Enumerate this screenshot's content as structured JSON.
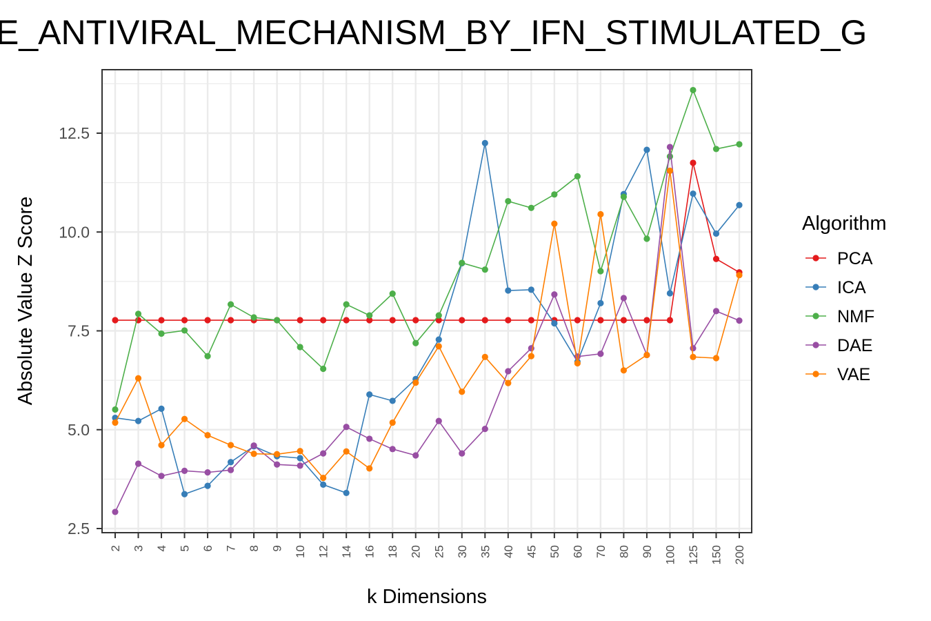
{
  "chart_data": {
    "type": "line",
    "title": "E_ANTIVIRAL_MECHANISM_BY_IFN_STIMULATED_G",
    "xlabel": "k Dimensions",
    "ylabel": "Absolute Value Z Score",
    "categories": [
      "2",
      "3",
      "4",
      "5",
      "6",
      "7",
      "8",
      "9",
      "10",
      "12",
      "14",
      "16",
      "18",
      "20",
      "25",
      "30",
      "35",
      "40",
      "45",
      "50",
      "60",
      "70",
      "80",
      "90",
      "100",
      "125",
      "150",
      "200"
    ],
    "yticks": [
      "2.5",
      "5.0",
      "7.5",
      "10.0",
      "12.5"
    ],
    "ylim": [
      2.4,
      14.2
    ],
    "grid": true,
    "legend": {
      "title": "Algorithm",
      "position": "right"
    },
    "series": [
      {
        "name": "PCA",
        "color": "#e41a1c",
        "values": [
          7.77,
          7.77,
          7.77,
          7.77,
          7.77,
          7.77,
          7.77,
          7.77,
          7.77,
          7.77,
          7.77,
          7.77,
          7.77,
          7.77,
          7.77,
          7.77,
          7.77,
          7.77,
          7.77,
          7.77,
          7.77,
          7.77,
          7.77,
          7.77,
          7.77,
          11.75,
          9.32,
          8.98
        ]
      },
      {
        "name": "ICA",
        "color": "#377eb8",
        "values": [
          5.3,
          5.22,
          5.53,
          3.37,
          3.58,
          4.18,
          4.58,
          4.33,
          4.28,
          3.61,
          3.4,
          5.89,
          5.73,
          6.28,
          7.28,
          9.21,
          12.25,
          8.52,
          8.54,
          7.69,
          6.72,
          8.2,
          10.96,
          12.08,
          8.45,
          10.97,
          9.96,
          10.68
        ]
      },
      {
        "name": "NMF",
        "color": "#4daf4a",
        "values": [
          5.51,
          7.93,
          7.43,
          7.51,
          6.86,
          8.17,
          7.84,
          7.77,
          7.09,
          6.54,
          8.17,
          7.89,
          8.44,
          7.19,
          7.89,
          9.22,
          9.05,
          10.78,
          10.61,
          10.95,
          11.41,
          9.01,
          10.89,
          9.83,
          11.91,
          13.59,
          12.1,
          12.22
        ]
      },
      {
        "name": "DAE",
        "color": "#984ea3",
        "values": [
          2.92,
          4.14,
          3.83,
          3.96,
          3.92,
          3.98,
          4.6,
          4.12,
          4.09,
          4.4,
          5.07,
          4.77,
          4.51,
          4.35,
          5.22,
          4.4,
          5.02,
          6.48,
          7.06,
          8.42,
          6.85,
          6.92,
          8.33,
          6.89,
          12.15,
          7.06,
          8.0,
          7.76
        ]
      },
      {
        "name": "VAE",
        "color": "#ff7f00",
        "values": [
          5.18,
          6.3,
          4.61,
          5.27,
          4.86,
          4.61,
          4.39,
          4.38,
          4.46,
          3.78,
          4.45,
          4.02,
          5.18,
          6.19,
          7.11,
          5.96,
          6.84,
          6.18,
          6.86,
          10.21,
          6.68,
          10.45,
          6.5,
          6.89,
          11.55,
          6.84,
          6.81,
          8.91
        ]
      }
    ]
  }
}
